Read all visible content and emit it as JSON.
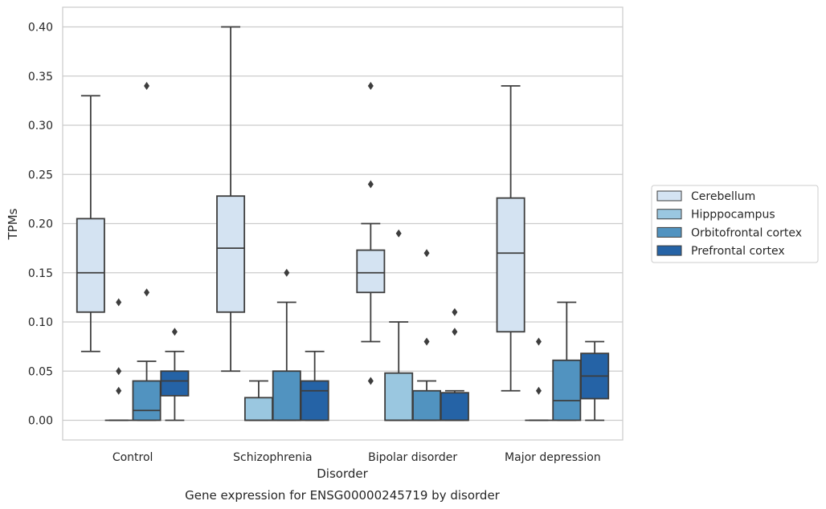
{
  "chart_data": {
    "type": "box",
    "title": "Gene expression for ENSG00000245719 by disorder",
    "xlabel": "Disorder",
    "ylabel": "TPMs",
    "ylim": [
      -0.02,
      0.42
    ],
    "yticks": [
      "0.00",
      "0.05",
      "0.10",
      "0.15",
      "0.20",
      "0.25",
      "0.30",
      "0.35",
      "0.40"
    ],
    "grid": true,
    "legend_position": "right",
    "categories": [
      "Control",
      "Schizophrenia",
      "Bipolar disorder",
      "Major depression"
    ],
    "series": [
      {
        "name": "Cerebellum",
        "color": "#d4e3f2",
        "boxes": [
          {
            "whislo": 0.07,
            "q1": 0.11,
            "med": 0.15,
            "q3": 0.205,
            "whishi": 0.33,
            "fliers": []
          },
          {
            "whislo": 0.05,
            "q1": 0.11,
            "med": 0.175,
            "q3": 0.228,
            "whishi": 0.4,
            "fliers": []
          },
          {
            "whislo": 0.08,
            "q1": 0.13,
            "med": 0.15,
            "q3": 0.173,
            "whishi": 0.2,
            "fliers": [
              0.34,
              0.24,
              0.04
            ]
          },
          {
            "whislo": 0.03,
            "q1": 0.09,
            "med": 0.17,
            "q3": 0.226,
            "whishi": 0.34,
            "fliers": []
          }
        ]
      },
      {
        "name": "Hipppocampus",
        "color": "#9ac7e0",
        "boxes": [
          {
            "whislo": 0.0,
            "q1": 0.0,
            "med": 0.0,
            "q3": 0.0,
            "whishi": 0.0,
            "fliers": [
              0.12,
              0.05,
              0.03
            ]
          },
          {
            "whislo": 0.0,
            "q1": 0.0,
            "med": 0.0,
            "q3": 0.023,
            "whishi": 0.04,
            "fliers": []
          },
          {
            "whislo": 0.0,
            "q1": 0.0,
            "med": 0.0,
            "q3": 0.048,
            "whishi": 0.1,
            "fliers": [
              0.19
            ]
          },
          {
            "whislo": 0.0,
            "q1": 0.0,
            "med": 0.0,
            "q3": 0.0,
            "whishi": 0.0,
            "fliers": [
              0.08,
              0.03
            ]
          }
        ]
      },
      {
        "name": "Orbitofrontal cortex",
        "color": "#5193c0",
        "boxes": [
          {
            "whislo": 0.0,
            "q1": 0.0,
            "med": 0.01,
            "q3": 0.04,
            "whishi": 0.06,
            "fliers": [
              0.34,
              0.13
            ]
          },
          {
            "whislo": 0.0,
            "q1": 0.0,
            "med": 0.0,
            "q3": 0.05,
            "whishi": 0.12,
            "fliers": [
              0.15
            ]
          },
          {
            "whislo": 0.0,
            "q1": 0.0,
            "med": 0.0,
            "q3": 0.03,
            "whishi": 0.04,
            "fliers": [
              0.17,
              0.08
            ]
          },
          {
            "whislo": 0.0,
            "q1": 0.0,
            "med": 0.02,
            "q3": 0.061,
            "whishi": 0.12,
            "fliers": []
          }
        ]
      },
      {
        "name": "Prefrontal cortex",
        "color": "#2563a6",
        "boxes": [
          {
            "whislo": 0.0,
            "q1": 0.025,
            "med": 0.04,
            "q3": 0.05,
            "whishi": 0.07,
            "fliers": [
              0.09
            ]
          },
          {
            "whislo": 0.0,
            "q1": 0.0,
            "med": 0.03,
            "q3": 0.04,
            "whishi": 0.07,
            "fliers": []
          },
          {
            "whislo": 0.0,
            "q1": 0.0,
            "med": 0.0,
            "q3": 0.028,
            "whishi": 0.03,
            "fliers": [
              0.11,
              0.09
            ]
          },
          {
            "whislo": 0.0,
            "q1": 0.022,
            "med": 0.045,
            "q3": 0.068,
            "whishi": 0.08,
            "fliers": []
          }
        ]
      }
    ]
  }
}
